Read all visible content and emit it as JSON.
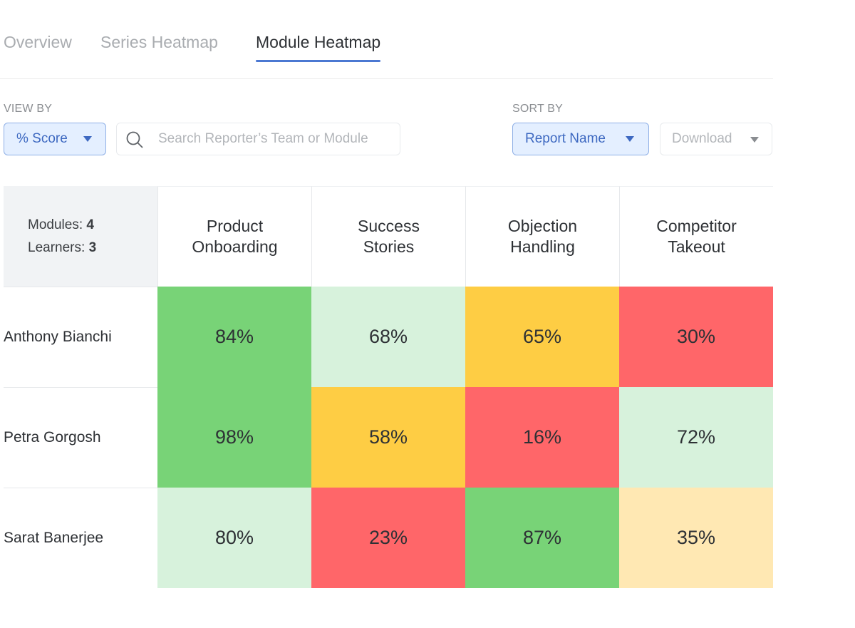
{
  "tabs": [
    {
      "label": "Overview",
      "active": false
    },
    {
      "label": "Series Heatmap",
      "active": false
    },
    {
      "label": "Module Heatmap",
      "active": true
    }
  ],
  "toolbar": {
    "view_by_label": "VIEW BY",
    "view_by_value": "% Score",
    "search_placeholder": "Search Reporter’s Team or Module",
    "sort_by_label": "SORT BY",
    "sort_by_value": "Report Name",
    "download_label": "Download"
  },
  "summary": {
    "modules_label": "Modules:",
    "modules_count": "4",
    "learners_label": "Learners:",
    "learners_count": "3"
  },
  "columns": [
    [
      "Product",
      "Onboarding"
    ],
    [
      "Success",
      "Stories"
    ],
    [
      "Objection",
      "Handling"
    ],
    [
      "Competitor",
      "Takeout"
    ]
  ],
  "rows": [
    {
      "name": "Anthony Bianchi",
      "values": [
        "84%",
        "68%",
        "65%",
        "30%"
      ]
    },
    {
      "name": "Petra Gorgosh",
      "values": [
        "98%",
        "58%",
        "16%",
        "72%"
      ]
    },
    {
      "name": "Sarat Banerjee",
      "values": [
        "80%",
        "23%",
        "87%",
        "35%"
      ]
    }
  ],
  "cell_colors": [
    [
      "#78d377",
      "#d7f2dc",
      "#fecd44",
      "#ff6669"
    ],
    [
      "#78d377",
      "#fecd44",
      "#ff6669",
      "#d7f2dc"
    ],
    [
      "#d7f2dc",
      "#ff6669",
      "#78d377",
      "#ffe8b3"
    ]
  ],
  "icons": {
    "search": "search-icon",
    "dropdown": "chevron-down-icon"
  }
}
